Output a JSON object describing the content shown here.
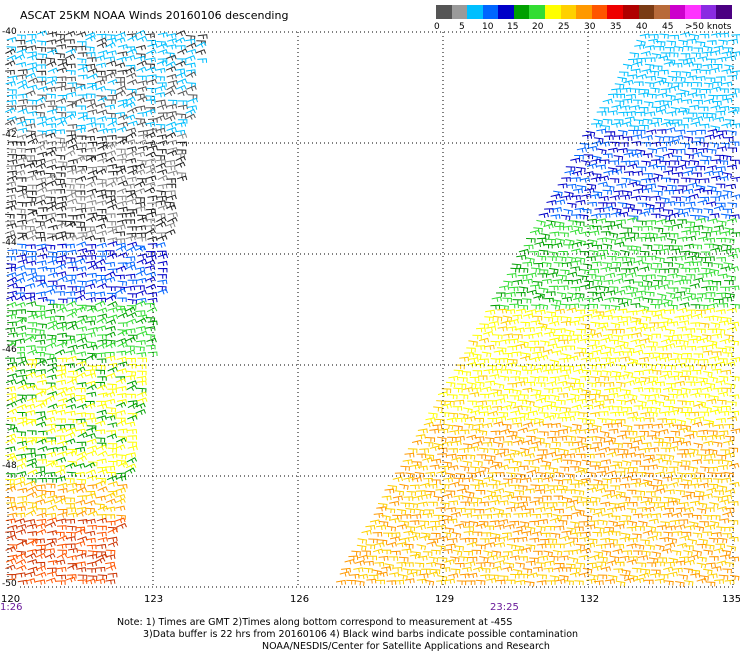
{
  "title": "ASCAT 25KM NOAA Winds 20160106 descending",
  "colorbar": {
    "labels": [
      "0",
      "5",
      "10",
      "15",
      "20",
      "25",
      "30",
      "35",
      "40",
      "45",
      ">50 knots"
    ],
    "colors": [
      "#555555",
      "#9a9a9a",
      "#00bfff",
      "#0066ff",
      "#0000c8",
      "#00a000",
      "#33dd33",
      "#ffff00",
      "#ffd000",
      "#ff9900",
      "#ff5500",
      "#ee0000",
      "#b00000",
      "#7a3b14",
      "#b86a3a",
      "#cc00cc",
      "#ff33ff",
      "#8a2be2",
      "#4b0082"
    ]
  },
  "map": {
    "lat_labels": [
      "-40",
      "-42",
      "-44",
      "-46",
      "-48",
      "-50"
    ],
    "lon_labels": [
      "120",
      "123",
      "126",
      "129",
      "132",
      "135"
    ],
    "lat_values": [
      -40,
      -42,
      -44,
      -46,
      -48,
      -50
    ],
    "lon_values": [
      120,
      123,
      126,
      129,
      132,
      135
    ],
    "swath_times": [
      "1:26",
      "23:25"
    ]
  },
  "notes": {
    "line1": "Note: 1) Times are GMT 2)Times along bottom correspond to measurement at -45S",
    "line2": "3)Data buffer is 22 hrs from 20160106 4) Black wind barbs indicate possible contamination",
    "line3": "NOAA/NESDIS/Center for Satellite Applications and Research"
  }
}
